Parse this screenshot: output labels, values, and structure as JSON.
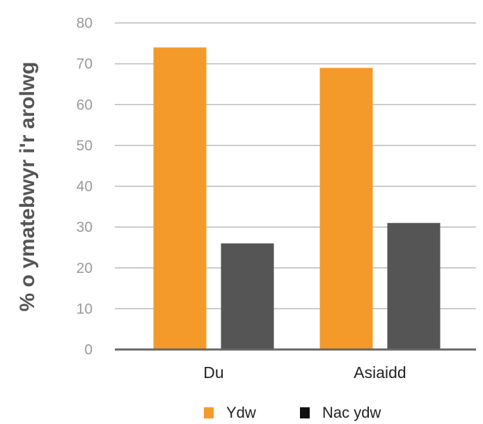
{
  "chart_data": {
    "type": "bar",
    "categories": [
      "Du",
      "Asiaidd"
    ],
    "series": [
      {
        "name": "Ydw",
        "values": [
          74,
          69
        ],
        "color": "#F39A2A"
      },
      {
        "name": "Nac ydw",
        "values": [
          26,
          31
        ],
        "color": "#555555"
      }
    ],
    "legend_colors": [
      "#F39A2A",
      "#111111"
    ],
    "title": "",
    "xlabel": "",
    "ylabel": "% o ymatebwyr i'r arolwg",
    "ylim": [
      0,
      80
    ],
    "yticks": [
      "0",
      "10",
      "20",
      "30",
      "40",
      "50",
      "60",
      "70",
      "80"
    ],
    "grid": true,
    "legend_position": "bottom"
  }
}
